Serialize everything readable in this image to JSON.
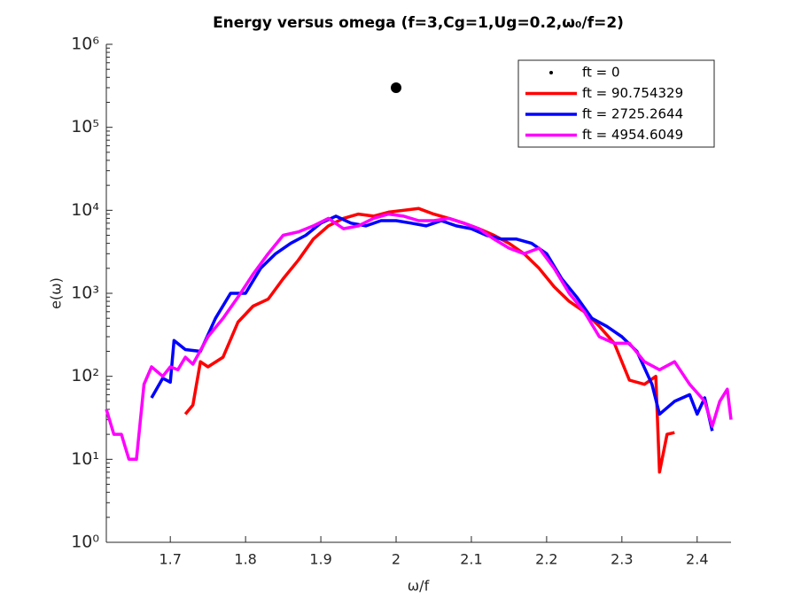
{
  "chart_data": {
    "type": "line",
    "title": "Energy versus omega (f=3,Cg=1,Ug=0.2,ω₀/f=2)",
    "xlabel": "ω/f",
    "ylabel": "e(ω)",
    "log_y": true,
    "legend": "northeast",
    "xlim": [
      1.615,
      2.445
    ],
    "xticks": [
      1.7,
      1.8,
      1.9,
      2,
      2.1,
      2.2,
      2.3,
      2.4
    ],
    "ylim": [
      1,
      1000000
    ],
    "yticks": [
      {
        "value": 1,
        "label": "10⁰"
      },
      {
        "value": 10,
        "label": "10¹"
      },
      {
        "value": 100,
        "label": "10²"
      },
      {
        "value": 1000,
        "label": "10³"
      },
      {
        "value": 10000,
        "label": "10⁴"
      },
      {
        "value": 100000,
        "label": "10⁵"
      },
      {
        "value": 1000000,
        "label": "10⁶"
      }
    ],
    "series": [
      {
        "name": "ft = 0",
        "color": "#000000",
        "marker": "dot",
        "x": [
          2
        ],
        "values": [
          300000
        ]
      },
      {
        "name": "ft = 90.754329",
        "color": "#ff0000",
        "marker": "none",
        "x": [
          1.72,
          1.73,
          1.74,
          1.75,
          1.77,
          1.79,
          1.81,
          1.83,
          1.85,
          1.87,
          1.89,
          1.91,
          1.93,
          1.95,
          1.97,
          1.99,
          2.01,
          2.03,
          2.05,
          2.07,
          2.09,
          2.11,
          2.13,
          2.15,
          2.17,
          2.19,
          2.21,
          2.23,
          2.25,
          2.27,
          2.29,
          2.31,
          2.33,
          2.345,
          2.35,
          2.36,
          2.37
        ],
        "values": [
          35,
          45,
          150,
          130,
          170,
          450,
          700,
          850,
          1500,
          2500,
          4500,
          6500,
          8000,
          9000,
          8500,
          9500,
          10000,
          10500,
          9000,
          8000,
          7000,
          6000,
          5000,
          4000,
          3000,
          2000,
          1200,
          800,
          600,
          400,
          250,
          90,
          80,
          100,
          7,
          20,
          21
        ]
      },
      {
        "name": "ft = 2725.2644",
        "color": "#0000ff",
        "marker": "none",
        "x": [
          1.675,
          1.69,
          1.7,
          1.705,
          1.72,
          1.74,
          1.76,
          1.78,
          1.8,
          1.82,
          1.84,
          1.86,
          1.88,
          1.9,
          1.92,
          1.94,
          1.96,
          1.98,
          2.0,
          2.02,
          2.04,
          2.06,
          2.08,
          2.1,
          2.12,
          2.14,
          2.16,
          2.18,
          2.2,
          2.22,
          2.24,
          2.26,
          2.28,
          2.3,
          2.32,
          2.34,
          2.35,
          2.37,
          2.39,
          2.4,
          2.41,
          2.42
        ],
        "values": [
          55,
          95,
          85,
          270,
          210,
          200,
          500,
          1000,
          1000,
          2000,
          3000,
          4000,
          5000,
          7000,
          8500,
          7000,
          6500,
          7500,
          7500,
          7000,
          6500,
          7500,
          6500,
          6000,
          5000,
          4500,
          4500,
          4000,
          3000,
          1500,
          900,
          500,
          400,
          300,
          200,
          80,
          35,
          50,
          60,
          35,
          55,
          22
        ]
      },
      {
        "name": "ft = 4954.6049",
        "color": "#ff00ff",
        "marker": "none",
        "x": [
          1.615,
          1.625,
          1.635,
          1.645,
          1.655,
          1.665,
          1.675,
          1.69,
          1.7,
          1.71,
          1.72,
          1.73,
          1.75,
          1.77,
          1.79,
          1.81,
          1.83,
          1.85,
          1.87,
          1.89,
          1.91,
          1.93,
          1.95,
          1.97,
          1.99,
          2.01,
          2.03,
          2.05,
          2.07,
          2.09,
          2.11,
          2.13,
          2.15,
          2.17,
          2.19,
          2.21,
          2.23,
          2.25,
          2.27,
          2.29,
          2.31,
          2.33,
          2.35,
          2.37,
          2.39,
          2.41,
          2.42,
          2.43,
          2.44,
          2.445
        ],
        "values": [
          40,
          20,
          20,
          10,
          10,
          80,
          130,
          100,
          130,
          120,
          170,
          140,
          300,
          500,
          900,
          1700,
          3000,
          5000,
          5500,
          6500,
          8000,
          6000,
          6500,
          8000,
          9000,
          8500,
          7500,
          7500,
          8000,
          7000,
          6000,
          4500,
          3500,
          3000,
          3500,
          2000,
          1000,
          600,
          300,
          250,
          250,
          150,
          120,
          150,
          80,
          50,
          25,
          50,
          70,
          30
        ]
      }
    ]
  }
}
